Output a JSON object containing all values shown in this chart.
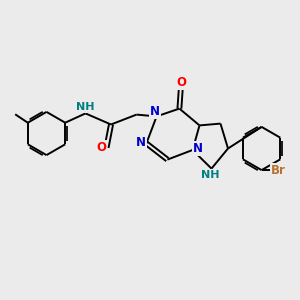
{
  "bg_color": "#ebebeb",
  "bond_color": "#000000",
  "bond_width": 1.4,
  "atom_colors": {
    "N": "#0000cc",
    "O": "#ff0000",
    "Br": "#b87333",
    "NH": "#008080",
    "C": "#000000"
  },
  "font_size": 8.5,
  "font_size_small": 7.0
}
